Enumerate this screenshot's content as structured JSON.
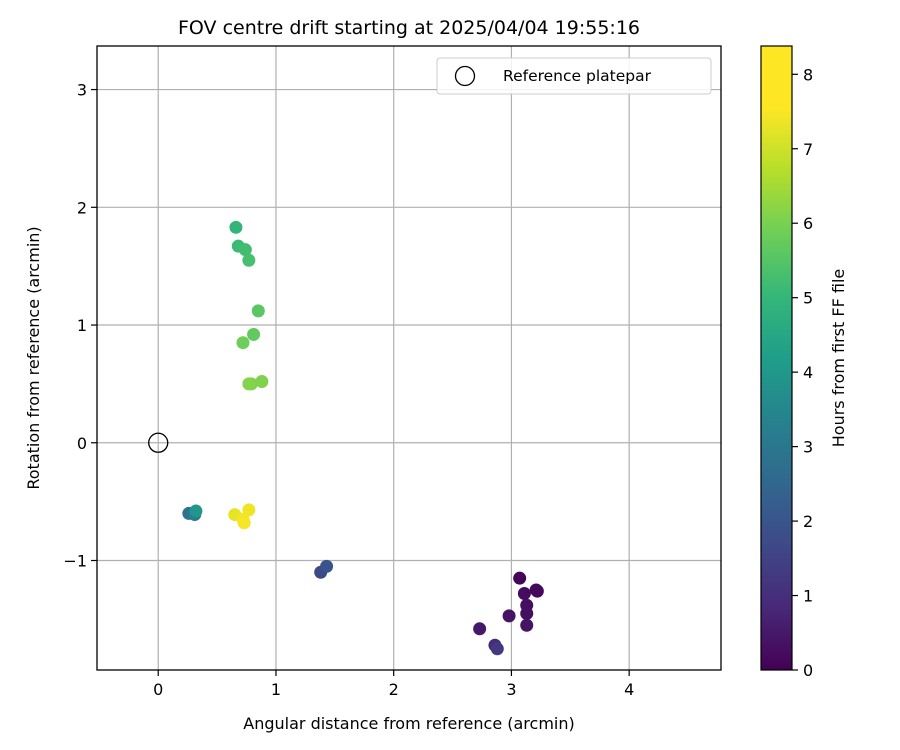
{
  "chart_data": {
    "type": "scatter",
    "title": "FOV centre drift starting at 2025/04/04 19:55:16",
    "xlabel": "Angular distance from reference (arcmin)",
    "ylabel": "Rotation from reference (arcmin)",
    "xlim": [
      -0.52,
      4.78
    ],
    "ylim": [
      -1.93,
      3.37
    ],
    "xticks": [
      0,
      1,
      2,
      3,
      4
    ],
    "yticks": [
      -1,
      0,
      1,
      2,
      3
    ],
    "xtick_labels": [
      "0",
      "1",
      "2",
      "3",
      "4"
    ],
    "ytick_labels": [
      "−1",
      "0",
      "1",
      "2",
      "3"
    ],
    "grid": true,
    "legend": {
      "label": "Reference platepar",
      "placement": "top-right"
    },
    "reference_point": {
      "x": 0,
      "y": 0
    },
    "colorbar": {
      "label": "Hours from first FF file",
      "colormap": "viridis",
      "range": [
        0,
        8.38
      ],
      "ticks": [
        0,
        1,
        2,
        3,
        4,
        5,
        6,
        7,
        8
      ],
      "tick_labels": [
        "0",
        "1",
        "2",
        "3",
        "4",
        "5",
        "6",
        "7",
        "8"
      ]
    },
    "points": [
      {
        "x": 3.07,
        "y": -1.15,
        "hours": 0.1
      },
      {
        "x": 3.22,
        "y": -1.26,
        "hours": 0.15
      },
      {
        "x": 3.21,
        "y": -1.25,
        "hours": 0.2
      },
      {
        "x": 3.11,
        "y": -1.28,
        "hours": 0.25
      },
      {
        "x": 3.13,
        "y": -1.38,
        "hours": 0.3
      },
      {
        "x": 3.13,
        "y": -1.45,
        "hours": 0.35
      },
      {
        "x": 2.98,
        "y": -1.47,
        "hours": 0.4
      },
      {
        "x": 3.13,
        "y": -1.55,
        "hours": 0.45
      },
      {
        "x": 2.73,
        "y": -1.58,
        "hours": 0.55
      },
      {
        "x": 2.86,
        "y": -1.72,
        "hours": 1.0
      },
      {
        "x": 2.88,
        "y": -1.75,
        "hours": 1.4
      },
      {
        "x": 1.38,
        "y": -1.1,
        "hours": 1.9
      },
      {
        "x": 1.43,
        "y": -1.05,
        "hours": 2.2
      },
      {
        "x": 0.26,
        "y": -0.6,
        "hours": 3.2
      },
      {
        "x": 0.31,
        "y": -0.61,
        "hours": 3.5
      },
      {
        "x": 0.32,
        "y": -0.58,
        "hours": 4.4
      },
      {
        "x": 0.66,
        "y": 1.83,
        "hours": 5.5
      },
      {
        "x": 0.68,
        "y": 1.67,
        "hours": 5.7
      },
      {
        "x": 0.74,
        "y": 1.64,
        "hours": 5.8
      },
      {
        "x": 0.77,
        "y": 1.55,
        "hours": 5.9
      },
      {
        "x": 0.85,
        "y": 1.12,
        "hours": 6.2
      },
      {
        "x": 0.81,
        "y": 0.92,
        "hours": 6.3
      },
      {
        "x": 0.72,
        "y": 0.85,
        "hours": 6.5
      },
      {
        "x": 0.79,
        "y": 0.5,
        "hours": 6.7
      },
      {
        "x": 0.88,
        "y": 0.52,
        "hours": 6.75
      },
      {
        "x": 0.77,
        "y": 0.5,
        "hours": 6.8
      },
      {
        "x": 0.65,
        "y": -0.61,
        "hours": 8.1
      },
      {
        "x": 0.77,
        "y": -0.57,
        "hours": 8.2
      },
      {
        "x": 0.72,
        "y": -0.65,
        "hours": 8.25
      },
      {
        "x": 0.73,
        "y": -0.68,
        "hours": 8.3
      }
    ]
  }
}
